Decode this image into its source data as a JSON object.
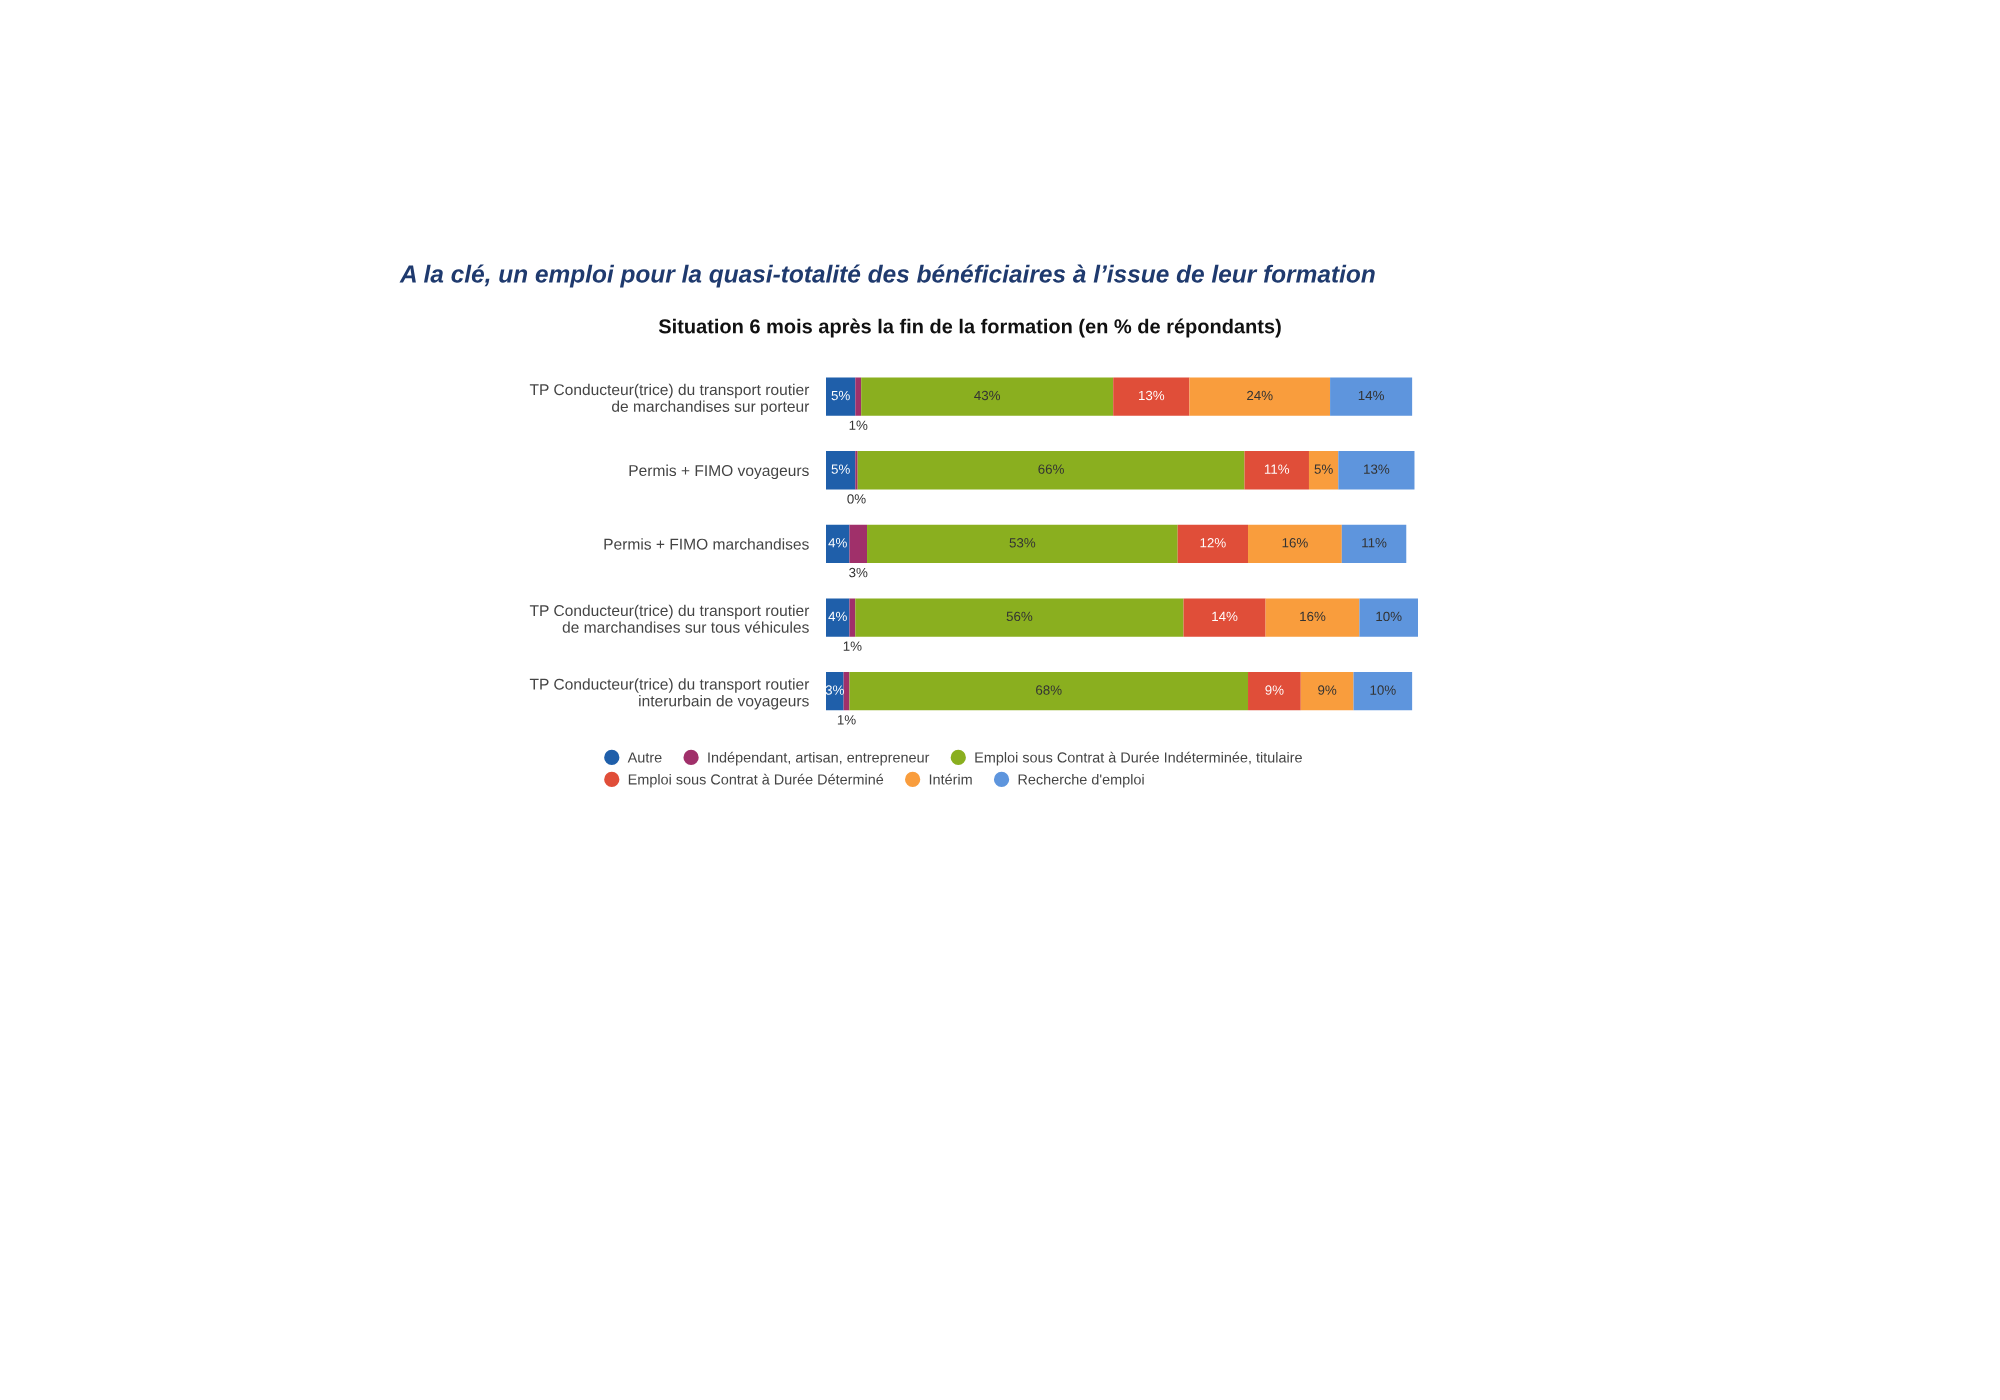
{
  "chart_data": {
    "type": "bar",
    "orientation": "horizontal",
    "stacked": true,
    "title": "A la clé, un emploi pour la quasi-totalité des bénéficiaires à l’issue de leur formation",
    "subtitle": "Situation 6 mois après la fin de la formation (en % de répondants)",
    "categories": [
      "TP Conducteur(trice) du transport routier\nde marchandises sur porteur",
      "Permis + FIMO voyageurs",
      "Permis + FIMO marchandises",
      "TP Conducteur(trice) du transport routier\nde marchandises sur tous véhicules",
      "TP Conducteur(trice) du transport routier\ninterurbain de voyageurs"
    ],
    "series": [
      {
        "name": "Autre",
        "color": "#1f5faa",
        "values": [
          5,
          5,
          4,
          4,
          3
        ],
        "value_labels": [
          "5%",
          "5%",
          "4%",
          "4%",
          "3%"
        ]
      },
      {
        "name": "Indépendant, artisan, entrepreneur",
        "color": "#a0306a",
        "values": [
          1,
          0.4,
          3,
          1,
          1
        ],
        "value_labels": [
          "1%",
          "0%",
          "3%",
          "1%",
          "1%"
        ]
      },
      {
        "name": "Emploi sous Contrat à Durée Indéterminée, titulaire",
        "color": "#8aaf1f",
        "values": [
          43,
          66,
          53,
          56,
          68
        ],
        "value_labels": [
          "43%",
          "66%",
          "53%",
          "56%",
          "68%"
        ]
      },
      {
        "name": "Emploi sous Contrat à Durée Déterminé",
        "color": "#e04e39",
        "values": [
          13,
          11,
          12,
          14,
          9
        ],
        "value_labels": [
          "13%",
          "11%",
          "12%",
          "14%",
          "9%"
        ]
      },
      {
        "name": "Intérim",
        "color": "#f99d3d",
        "values": [
          24,
          5,
          16,
          16,
          9
        ],
        "value_labels": [
          "24%",
          "5%",
          "16%",
          "16%",
          "9%"
        ]
      },
      {
        "name": "Recherche d'emploi",
        "color": "#5e95dd",
        "values": [
          14,
          13,
          11,
          10,
          10
        ],
        "value_labels": [
          "14%",
          "13%",
          "11%",
          "10%",
          "10%"
        ]
      }
    ],
    "legend": "bottom",
    "tick_labels": "y"
  }
}
